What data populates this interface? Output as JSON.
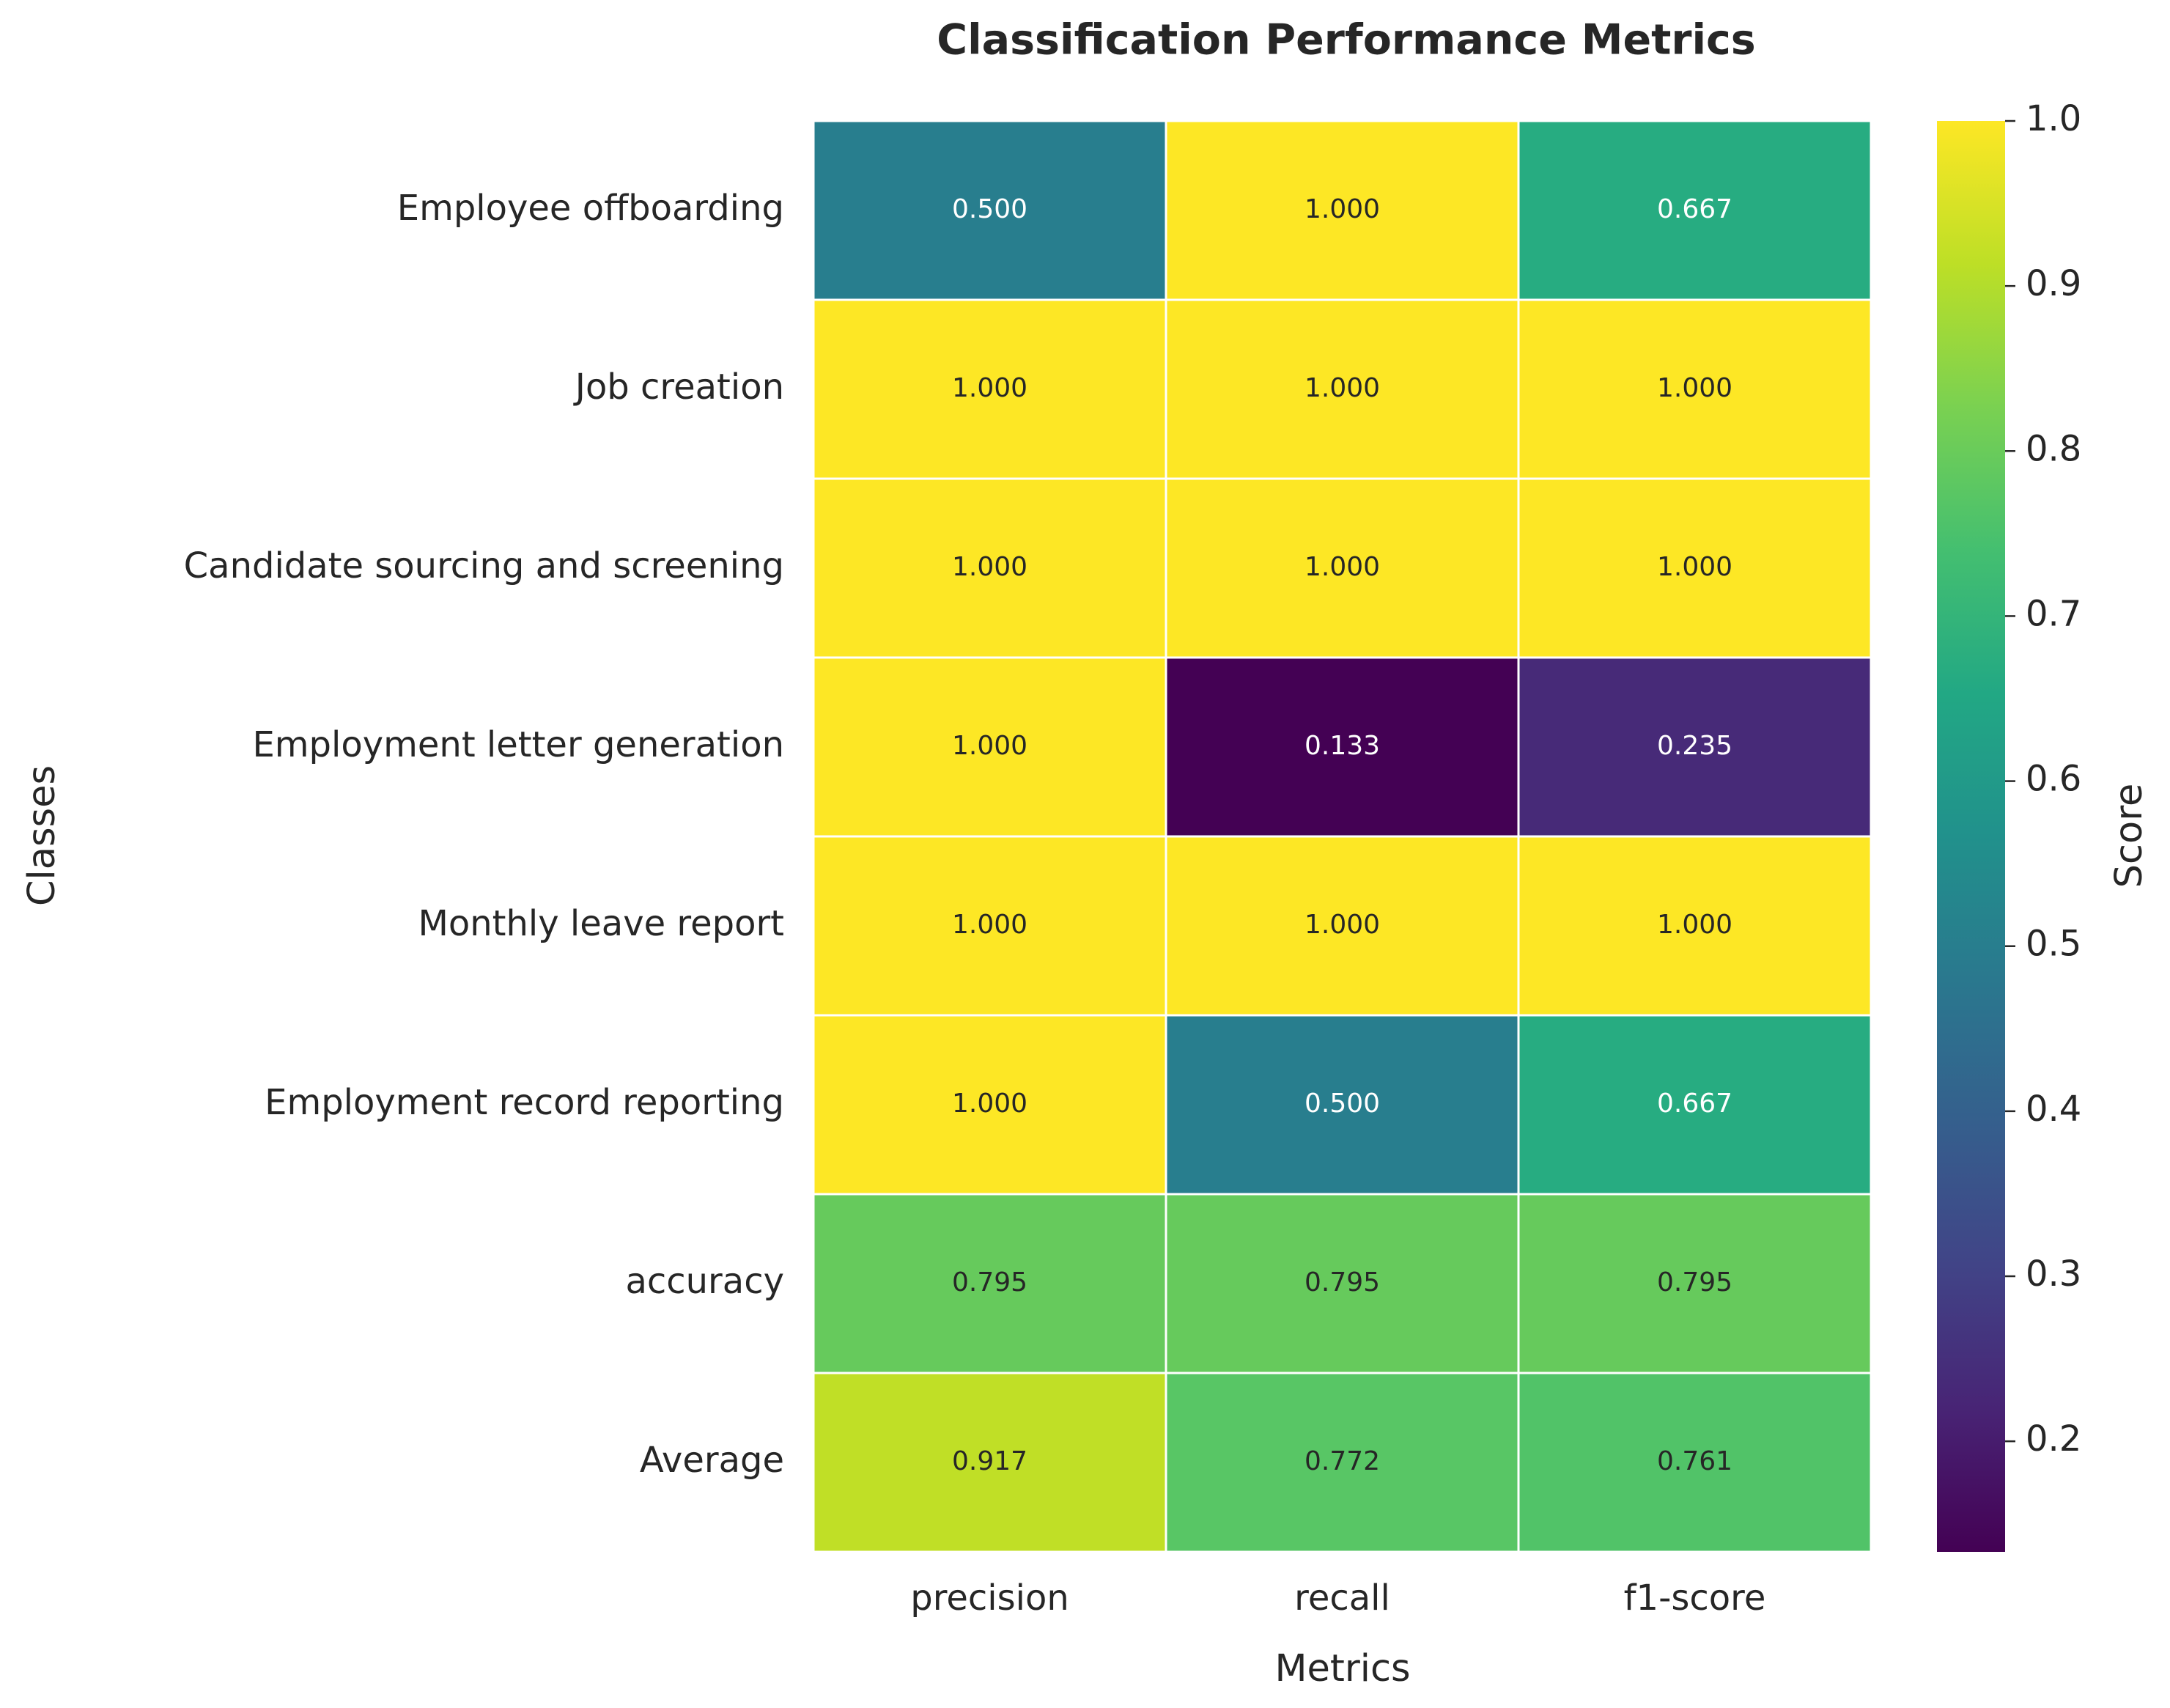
{
  "chart_data": {
    "type": "heatmap",
    "title": "Classification Performance Metrics",
    "xlabel": "Metrics",
    "ylabel": "Classes",
    "columns": [
      "precision",
      "recall",
      "f1-score"
    ],
    "rows": [
      "Employee offboarding",
      "Job creation",
      "Candidate sourcing and screening",
      "Employment letter generation",
      "Monthly leave report",
      "Employment record reporting",
      "accuracy",
      "Average"
    ],
    "values": [
      [
        0.5,
        1.0,
        0.667
      ],
      [
        1.0,
        1.0,
        1.0
      ],
      [
        1.0,
        1.0,
        1.0
      ],
      [
        1.0,
        0.133,
        0.235
      ],
      [
        1.0,
        1.0,
        1.0
      ],
      [
        1.0,
        0.5,
        0.667
      ],
      [
        0.795,
        0.795,
        0.795
      ],
      [
        0.917,
        0.772,
        0.761
      ]
    ],
    "cell_labels": [
      [
        "0.500",
        "1.000",
        "0.667"
      ],
      [
        "1.000",
        "1.000",
        "1.000"
      ],
      [
        "1.000",
        "1.000",
        "1.000"
      ],
      [
        "1.000",
        "0.133",
        "0.235"
      ],
      [
        "1.000",
        "1.000",
        "1.000"
      ],
      [
        "1.000",
        "0.500",
        "0.667"
      ],
      [
        "0.795",
        "0.795",
        "0.795"
      ],
      [
        "0.917",
        "0.772",
        "0.761"
      ]
    ],
    "colormap": "viridis",
    "colorbar": {
      "label": "Score",
      "range": [
        0.133,
        1.0
      ],
      "ticks": [
        "0.2",
        "0.3",
        "0.4",
        "0.5",
        "0.6",
        "0.7",
        "0.8",
        "0.9",
        "1.0"
      ]
    },
    "grid": false,
    "colors": {
      "cell_border": "#ffffff",
      "text_dark": "#262626",
      "text_light": "#ffffff"
    }
  }
}
